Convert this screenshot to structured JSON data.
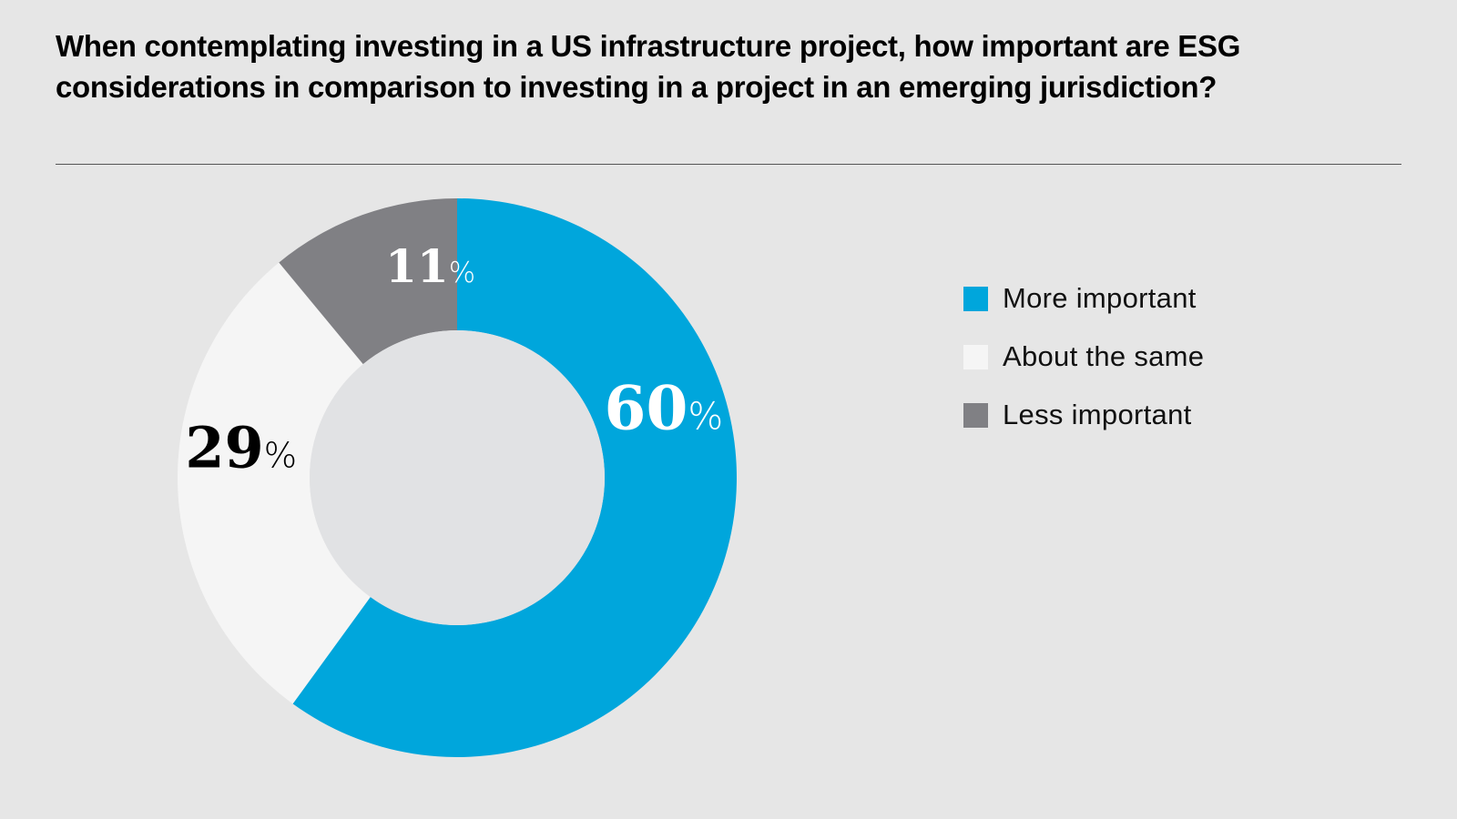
{
  "chart_data": {
    "type": "pie",
    "variant": "donut",
    "title": "When contemplating investing in a US infrastructure project, how important are ESG considerations in comparison to investing in a project in an emerging jurisdiction?",
    "categories": [
      "More important",
      "About the same",
      "Less important"
    ],
    "values": [
      60,
      29,
      11
    ],
    "unit": "%",
    "labels": [
      "60",
      "29",
      "11"
    ],
    "colors": [
      "#00a6dc",
      "#f5f5f5",
      "#808084"
    ],
    "label_colors": [
      "#ffffff",
      "#000000",
      "#ffffff"
    ],
    "center_color": "#e1e2e4",
    "start": "12 o'clock",
    "direction": "clockwise",
    "legend_position": "right"
  },
  "percent_sign": "%"
}
